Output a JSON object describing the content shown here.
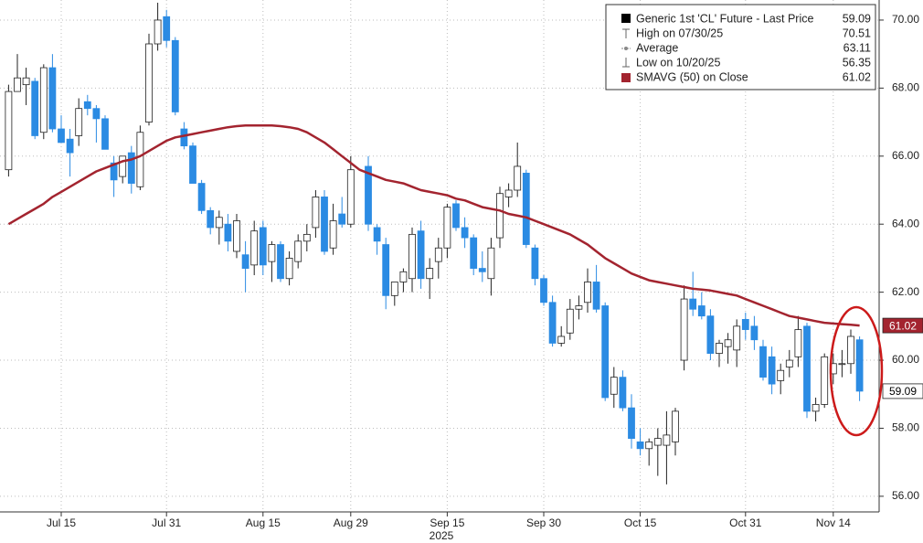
{
  "chart_data": {
    "type": "candlestick",
    "year_label": "2025",
    "categories": [
      "2025-07-07",
      "2025-07-08",
      "2025-07-09",
      "2025-07-10",
      "2025-07-11",
      "2025-07-14",
      "2025-07-15",
      "2025-07-16",
      "2025-07-17",
      "2025-07-18",
      "2025-07-21",
      "2025-07-22",
      "2025-07-23",
      "2025-07-24",
      "2025-07-25",
      "2025-07-28",
      "2025-07-29",
      "2025-07-30",
      "2025-07-31",
      "2025-08-01",
      "2025-08-04",
      "2025-08-05",
      "2025-08-06",
      "2025-08-07",
      "2025-08-08",
      "2025-08-11",
      "2025-08-12",
      "2025-08-13",
      "2025-08-14",
      "2025-08-15",
      "2025-08-18",
      "2025-08-19",
      "2025-08-20",
      "2025-08-21",
      "2025-08-22",
      "2025-08-25",
      "2025-08-26",
      "2025-08-27",
      "2025-08-28",
      "2025-08-29",
      "2025-09-01",
      "2025-09-02",
      "2025-09-03",
      "2025-09-04",
      "2025-09-05",
      "2025-09-08",
      "2025-09-09",
      "2025-09-10",
      "2025-09-11",
      "2025-09-12",
      "2025-09-15",
      "2025-09-16",
      "2025-09-17",
      "2025-09-18",
      "2025-09-19",
      "2025-09-22",
      "2025-09-23",
      "2025-09-24",
      "2025-09-25",
      "2025-09-26",
      "2025-09-29",
      "2025-09-30",
      "2025-10-01",
      "2025-10-02",
      "2025-10-03",
      "2025-10-06",
      "2025-10-07",
      "2025-10-08",
      "2025-10-09",
      "2025-10-10",
      "2025-10-13",
      "2025-10-14",
      "2025-10-15",
      "2025-10-16",
      "2025-10-17",
      "2025-10-20",
      "2025-10-21",
      "2025-10-22",
      "2025-10-23",
      "2025-10-24",
      "2025-10-27",
      "2025-10-28",
      "2025-10-29",
      "2025-10-30",
      "2025-10-31",
      "2025-11-03",
      "2025-11-04",
      "2025-11-05",
      "2025-11-06",
      "2025-11-07",
      "2025-11-10",
      "2025-11-11",
      "2025-11-12",
      "2025-11-13",
      "2025-11-14",
      "2025-11-17",
      "2025-11-18",
      "2025-11-19"
    ],
    "series": [
      {
        "name": "Generic 1st 'CL' Future - Last Price",
        "up_color": "#ffffff",
        "down_color": "#2b8be3",
        "edge_color": "#222222",
        "open": [
          65.6,
          67.9,
          68.1,
          68.2,
          66.7,
          68.6,
          66.8,
          66.5,
          66.6,
          67.6,
          67.4,
          67.1,
          65.8,
          65.4,
          66.1,
          65.1,
          67.0,
          69.3,
          70.1,
          69.4,
          66.8,
          66.3,
          65.2,
          64.4,
          63.9,
          64.0,
          63.2,
          63.1,
          62.8,
          63.9,
          62.9,
          63.4,
          62.4,
          62.9,
          63.5,
          63.9,
          64.8,
          63.3,
          64.3,
          64.0,
          null,
          65.7,
          63.9,
          63.4,
          61.9,
          62.3,
          62.4,
          63.8,
          62.4,
          62.9,
          63.3,
          64.6,
          63.9,
          63.6,
          62.7,
          62.4,
          63.6,
          64.8,
          65.0,
          65.5,
          63.3,
          62.4,
          61.7,
          60.5,
          60.8,
          61.5,
          61.7,
          62.3,
          61.6,
          59.0,
          59.5,
          58.6,
          57.6,
          57.4,
          57.5,
          57.5,
          57.6,
          60.0,
          61.8,
          61.6,
          61.3,
          60.2,
          60.4,
          60.3,
          61.2,
          61.0,
          60.4,
          60.1,
          59.4,
          59.8,
          60.1,
          61.0,
          58.5,
          58.7,
          59.6,
          59.9,
          59.9,
          60.6
        ],
        "high": [
          68.1,
          69.0,
          68.6,
          68.3,
          68.7,
          69.0,
          67.2,
          66.8,
          67.7,
          67.8,
          67.5,
          67.2,
          66.0,
          66.0,
          66.3,
          66.9,
          69.6,
          70.51,
          70.3,
          69.5,
          67.0,
          66.4,
          65.3,
          64.5,
          64.4,
          64.3,
          64.3,
          63.5,
          64.1,
          64.1,
          63.5,
          63.5,
          63.2,
          63.7,
          64.0,
          65.0,
          65.0,
          64.6,
          64.8,
          66.0,
          null,
          66.0,
          64.0,
          63.6,
          62.3,
          62.7,
          63.9,
          64.1,
          63.0,
          63.6,
          64.6,
          64.7,
          64.2,
          63.7,
          63.2,
          63.6,
          65.1,
          65.2,
          66.4,
          65.6,
          63.4,
          62.5,
          61.9,
          61.0,
          61.8,
          61.9,
          62.7,
          62.8,
          61.7,
          59.8,
          59.7,
          59.0,
          58.0,
          57.7,
          58.0,
          58.5,
          58.6,
          62.2,
          62.6,
          62.0,
          61.5,
          60.6,
          60.8,
          61.2,
          61.4,
          61.3,
          60.6,
          60.4,
          59.9,
          60.3,
          61.3,
          61.1,
          58.9,
          60.2,
          60.2,
          60.3,
          60.9,
          60.7
        ],
        "low": [
          65.4,
          67.9,
          67.5,
          66.5,
          66.5,
          66.7,
          66.4,
          65.4,
          66.3,
          67.2,
          66.4,
          66.2,
          64.8,
          65.2,
          64.9,
          65.0,
          66.9,
          69.1,
          69.2,
          67.2,
          66.2,
          65.2,
          64.3,
          63.7,
          63.4,
          63.2,
          63.0,
          62.0,
          62.5,
          62.5,
          62.3,
          62.3,
          62.2,
          62.7,
          63.2,
          63.6,
          63.1,
          63.1,
          63.9,
          63.9,
          null,
          63.8,
          63.1,
          61.5,
          61.6,
          62.0,
          62.0,
          62.1,
          61.8,
          62.4,
          63.0,
          63.8,
          63.3,
          62.5,
          62.3,
          61.9,
          63.3,
          64.5,
          64.8,
          63.3,
          62.2,
          61.6,
          60.4,
          60.4,
          60.6,
          61.2,
          61.4,
          61.4,
          58.8,
          58.6,
          58.5,
          57.4,
          57.2,
          56.9,
          56.6,
          56.35,
          57.2,
          59.7,
          61.3,
          61.2,
          60.0,
          59.8,
          59.9,
          59.8,
          60.6,
          60.3,
          59.4,
          59.0,
          59.0,
          59.5,
          59.8,
          58.3,
          58.2,
          58.6,
          59.3,
          59.5,
          59.6,
          58.8
        ],
        "close": [
          67.9,
          68.3,
          68.3,
          66.6,
          68.6,
          66.8,
          66.4,
          66.1,
          67.4,
          67.4,
          67.1,
          66.2,
          65.3,
          66.0,
          65.2,
          66.7,
          69.3,
          70.0,
          69.4,
          67.3,
          66.3,
          65.2,
          64.4,
          63.9,
          64.2,
          63.5,
          64.1,
          62.7,
          63.8,
          62.8,
          63.4,
          62.4,
          63.0,
          63.5,
          63.7,
          64.8,
          63.2,
          64.1,
          64.0,
          65.6,
          null,
          64.0,
          63.5,
          61.9,
          62.3,
          62.6,
          63.7,
          62.4,
          62.7,
          63.3,
          64.5,
          63.9,
          63.6,
          62.7,
          62.6,
          63.3,
          64.9,
          65.0,
          65.7,
          63.4,
          62.4,
          61.7,
          60.5,
          60.7,
          61.5,
          61.6,
          62.3,
          61.5,
          58.9,
          59.5,
          58.6,
          57.7,
          57.4,
          57.6,
          57.7,
          57.8,
          58.5,
          61.8,
          61.5,
          61.3,
          60.2,
          60.5,
          60.6,
          61.0,
          60.9,
          60.6,
          59.5,
          59.3,
          59.7,
          60.0,
          60.9,
          58.5,
          58.7,
          60.1,
          59.9,
          59.9,
          60.7,
          59.09
        ]
      },
      {
        "name": "SMAVG (50)  on Close",
        "type": "line",
        "color": "#a3242f",
        "values": [
          64.0,
          64.15,
          64.3,
          64.45,
          64.6,
          64.8,
          64.95,
          65.1,
          65.25,
          65.4,
          65.55,
          65.65,
          65.75,
          65.85,
          65.9,
          66.0,
          66.15,
          66.3,
          66.45,
          66.55,
          66.6,
          66.65,
          66.7,
          66.75,
          66.8,
          66.85,
          66.88,
          66.9,
          66.9,
          66.9,
          66.9,
          66.88,
          66.85,
          66.8,
          66.7,
          66.55,
          66.4,
          66.2,
          66.0,
          65.8,
          65.6,
          65.5,
          65.4,
          65.3,
          65.25,
          65.2,
          65.1,
          65.0,
          64.95,
          64.9,
          64.85,
          64.75,
          64.7,
          64.6,
          64.5,
          64.45,
          64.4,
          64.3,
          64.25,
          64.2,
          64.1,
          64.0,
          63.9,
          63.8,
          63.7,
          63.55,
          63.4,
          63.2,
          63.0,
          62.85,
          62.7,
          62.55,
          62.45,
          62.35,
          62.3,
          62.25,
          62.2,
          62.15,
          62.1,
          62.08,
          62.05,
          62.0,
          61.95,
          61.9,
          61.8,
          61.7,
          61.6,
          61.5,
          61.4,
          61.3,
          61.25,
          61.2,
          61.15,
          61.1,
          61.08,
          61.06,
          61.04,
          61.02
        ]
      }
    ],
    "annotations": [
      {
        "label": "High on 07/30/25",
        "value": 70.51
      },
      {
        "label": "Average",
        "value": 63.11
      },
      {
        "label": "Low on 10/20/25",
        "value": 56.35
      }
    ],
    "ylim": [
      55.54,
      70.59
    ],
    "yticks": [
      {
        "value": 56,
        "label": "56.00"
      },
      {
        "value": 58,
        "label": "58.00"
      },
      {
        "value": 60,
        "label": "60.00"
      },
      {
        "value": 62,
        "label": "62.00"
      },
      {
        "value": 64,
        "label": "64.00"
      },
      {
        "value": 66,
        "label": "66.00"
      },
      {
        "value": 68,
        "label": "68.00"
      },
      {
        "value": 70,
        "label": "70.00"
      }
    ],
    "xticks": [
      {
        "value": "2025-07-15",
        "label": "Jul 15"
      },
      {
        "value": "2025-07-31",
        "label": "Jul 31"
      },
      {
        "value": "2025-08-15",
        "label": "Aug 15"
      },
      {
        "value": "2025-08-29",
        "label": "Aug 29"
      },
      {
        "value": "2025-09-15",
        "label": "Sep 15"
      },
      {
        "value": "2025-09-30",
        "label": "Sep 30"
      },
      {
        "value": "2025-10-15",
        "label": "Oct 15"
      },
      {
        "value": "2025-10-31",
        "label": "Oct 31"
      },
      {
        "value": "2025-11-14",
        "label": "Nov 14"
      }
    ],
    "grid": true,
    "legend_position": "upper right",
    "highlight_color": "#cc1a1a"
  }
}
